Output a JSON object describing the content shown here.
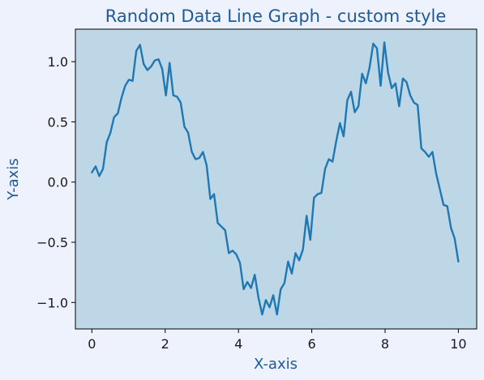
{
  "colors": {
    "page_background": "#eef2fd",
    "plot_background": "#bed7e6",
    "title": "#1f5a97",
    "axis_label": "#1f5a97",
    "line": "#1f77b4"
  },
  "chart_data": {
    "type": "line",
    "title": "Random Data Line Graph - custom style",
    "xlabel": "X-axis",
    "ylabel": "Y-axis",
    "xlim": [
      -0.45,
      10.5
    ],
    "ylim": [
      -1.22,
      1.27
    ],
    "grid": false,
    "xticks": [
      0,
      2,
      4,
      6,
      8,
      10
    ],
    "xtick_labels": [
      "0",
      "2",
      "4",
      "6",
      "8",
      "10"
    ],
    "yticks": [
      -1.0,
      -0.5,
      0.0,
      0.5,
      1.0
    ],
    "ytick_labels": [
      "−1.0",
      "−0.5",
      "0.0",
      "0.5",
      "1.0"
    ],
    "series": [
      {
        "x": [
          0.0,
          0.101,
          0.202,
          0.303,
          0.404,
          0.505,
          0.606,
          0.707,
          0.808,
          0.909,
          1.01,
          1.111,
          1.212,
          1.313,
          1.414,
          1.515,
          1.616,
          1.717,
          1.818,
          1.919,
          2.02,
          2.121,
          2.222,
          2.323,
          2.424,
          2.525,
          2.626,
          2.727,
          2.828,
          2.929,
          3.03,
          3.131,
          3.232,
          3.333,
          3.434,
          3.535,
          3.636,
          3.737,
          3.838,
          3.939,
          4.04,
          4.141,
          4.242,
          4.343,
          4.444,
          4.545,
          4.646,
          4.747,
          4.848,
          4.949,
          5.051,
          5.152,
          5.253,
          5.354,
          5.455,
          5.556,
          5.657,
          5.758,
          5.859,
          5.96,
          6.061,
          6.162,
          6.263,
          6.364,
          6.465,
          6.566,
          6.667,
          6.768,
          6.869,
          6.97,
          7.071,
          7.172,
          7.273,
          7.374,
          7.475,
          7.576,
          7.677,
          7.778,
          7.879,
          7.98,
          8.081,
          8.182,
          8.283,
          8.384,
          8.485,
          8.586,
          8.687,
          8.788,
          8.889,
          8.99,
          9.091,
          9.192,
          9.293,
          9.394,
          9.495,
          9.596,
          9.697,
          9.798,
          9.899,
          10.0
        ],
        "y": [
          0.08,
          0.13,
          0.05,
          0.11,
          0.33,
          0.41,
          0.54,
          0.57,
          0.7,
          0.8,
          0.85,
          0.84,
          1.09,
          1.14,
          0.98,
          0.93,
          0.96,
          1.01,
          1.02,
          0.94,
          0.72,
          0.99,
          0.72,
          0.71,
          0.66,
          0.46,
          0.41,
          0.25,
          0.19,
          0.2,
          0.25,
          0.14,
          -0.14,
          -0.1,
          -0.34,
          -0.37,
          -0.4,
          -0.59,
          -0.57,
          -0.6,
          -0.67,
          -0.89,
          -0.83,
          -0.88,
          -0.77,
          -0.96,
          -1.1,
          -0.98,
          -1.04,
          -0.94,
          -1.1,
          -0.89,
          -0.84,
          -0.66,
          -0.76,
          -0.59,
          -0.65,
          -0.56,
          -0.28,
          -0.48,
          -0.13,
          -0.1,
          -0.09,
          0.11,
          0.19,
          0.17,
          0.34,
          0.49,
          0.38,
          0.68,
          0.75,
          0.58,
          0.63,
          0.9,
          0.82,
          0.95,
          1.15,
          1.11,
          0.8,
          1.16,
          0.91,
          0.78,
          0.82,
          0.63,
          0.86,
          0.83,
          0.72,
          0.66,
          0.64,
          0.28,
          0.25,
          0.21,
          0.25,
          0.07,
          -0.06,
          -0.19,
          -0.2,
          -0.38,
          -0.47,
          -0.66
        ]
      }
    ]
  }
}
